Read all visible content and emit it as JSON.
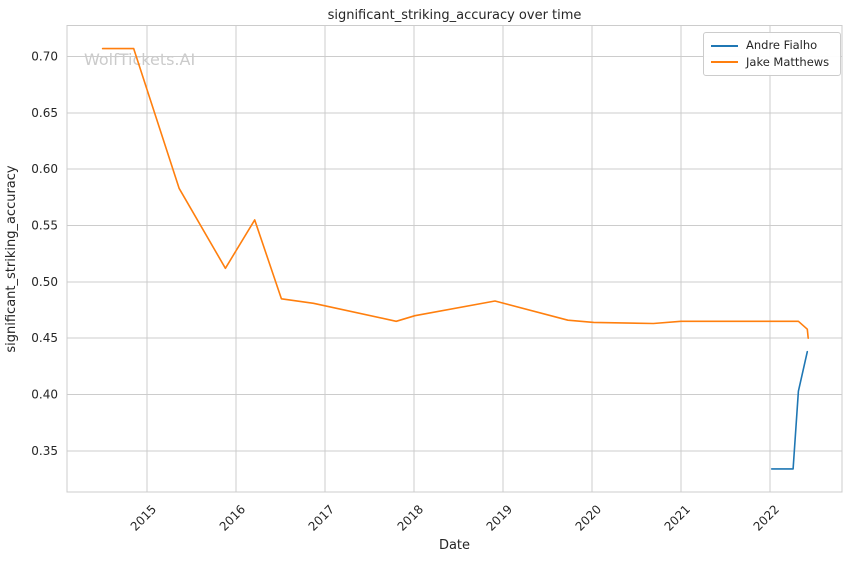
{
  "figure": {
    "title": "significant_striking_accuracy over time",
    "xlabel": "Date",
    "ylabel": "significant_striking_accuracy",
    "watermark": "WolfTickets.AI"
  },
  "legend": {
    "position": "upper right",
    "items": [
      {
        "label": "Andre Fialho"
      },
      {
        "label": "Jake Matthews"
      }
    ]
  },
  "chart_data": {
    "type": "line",
    "title": "significant_striking_accuracy over time",
    "xlabel": "Date",
    "ylabel": "significant_striking_accuracy",
    "watermark": "WolfTickets.AI",
    "grid": true,
    "legend_position": "upper right",
    "xlim": [
      2014.1,
      2022.81
    ],
    "ylim": [
      0.3135,
      0.7275
    ],
    "x_ticks": [
      2015,
      2016,
      2017,
      2018,
      2019,
      2020,
      2021,
      2022
    ],
    "x_tick_labels": [
      "2015",
      "2016",
      "2017",
      "2018",
      "2019",
      "2020",
      "2021",
      "2022"
    ],
    "y_ticks": [
      0.35,
      0.4,
      0.45,
      0.5,
      0.55,
      0.6,
      0.65,
      0.7
    ],
    "y_tick_labels": [
      "0.35",
      "0.40",
      "0.45",
      "0.50",
      "0.55",
      "0.60",
      "0.65",
      "0.70"
    ],
    "colors": {
      "andre_fialho": "#1f77b4",
      "jake_matthews": "#ff7f0e",
      "grid": "#cccccc",
      "text": "#262626",
      "watermark": "#cbcbcb"
    },
    "series": [
      {
        "name": "Andre Fialho",
        "color": "#1f77b4",
        "points": [
          [
            2022.02,
            0.334
          ],
          [
            2022.26,
            0.334
          ],
          [
            2022.32,
            0.403
          ],
          [
            2022.42,
            0.438
          ]
        ]
      },
      {
        "name": "Jake Matthews",
        "color": "#ff7f0e",
        "points": [
          [
            2014.5,
            0.707
          ],
          [
            2014.85,
            0.707
          ],
          [
            2015.36,
            0.583
          ],
          [
            2015.88,
            0.512
          ],
          [
            2016.21,
            0.555
          ],
          [
            2016.51,
            0.485
          ],
          [
            2016.87,
            0.481
          ],
          [
            2017.8,
            0.465
          ],
          [
            2018.01,
            0.47
          ],
          [
            2018.91,
            0.483
          ],
          [
            2019.73,
            0.466
          ],
          [
            2020.02,
            0.464
          ],
          [
            2020.69,
            0.463
          ],
          [
            2021.0,
            0.465
          ],
          [
            2022.32,
            0.465
          ],
          [
            2022.42,
            0.458
          ],
          [
            2022.43,
            0.45
          ]
        ]
      }
    ]
  }
}
